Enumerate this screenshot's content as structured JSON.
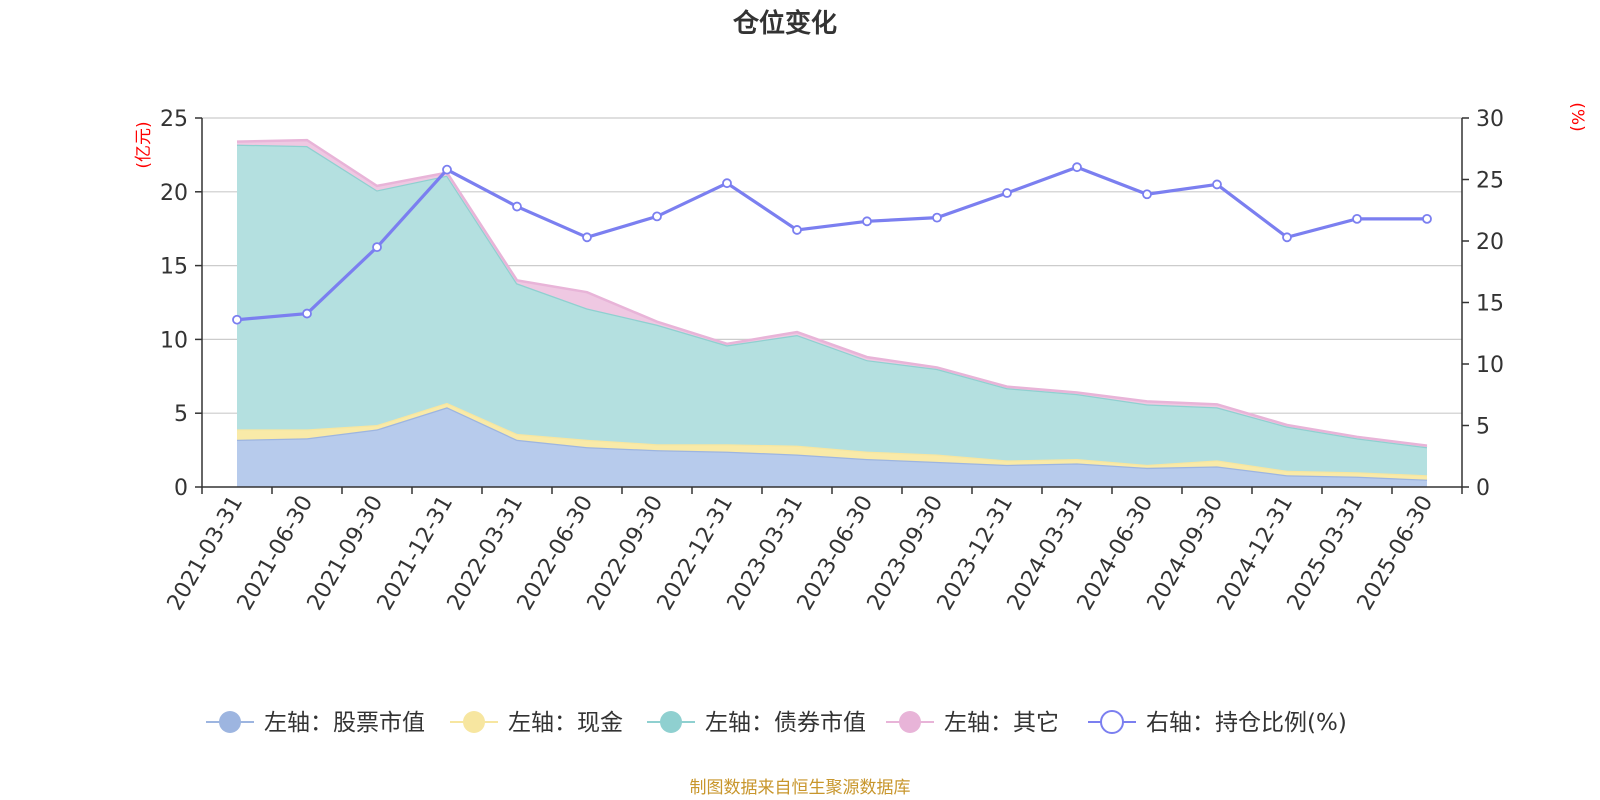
{
  "chart_data": {
    "type": "area",
    "title": "仓位变化",
    "left_axis_unit": "(亿元)",
    "right_axis_unit": "(%)",
    "categories": [
      "2021-03-31",
      "2021-06-30",
      "2021-09-30",
      "2021-12-31",
      "2022-03-31",
      "2022-06-30",
      "2022-09-30",
      "2022-12-31",
      "2023-03-31",
      "2023-06-30",
      "2023-09-30",
      "2023-12-31",
      "2024-03-31",
      "2024-06-30",
      "2024-09-30",
      "2024-12-31",
      "2025-03-31",
      "2025-06-30"
    ],
    "left_axis": {
      "min": 0,
      "max": 25,
      "ticks": [
        0,
        5,
        10,
        15,
        20,
        25
      ]
    },
    "right_axis": {
      "min": 0,
      "max": 30,
      "ticks": [
        0,
        5,
        10,
        15,
        20,
        25,
        30
      ]
    },
    "grid": true,
    "legend_position": "bottom",
    "series": [
      {
        "name": "左轴：股票市值",
        "axis": "left",
        "stacked": true,
        "color": "#9db5e0",
        "fill": "#b7cbec",
        "values": [
          3.2,
          3.3,
          3.9,
          5.4,
          3.2,
          2.7,
          2.5,
          2.4,
          2.2,
          1.9,
          1.7,
          1.5,
          1.6,
          1.3,
          1.4,
          0.8,
          0.7,
          0.5
        ]
      },
      {
        "name": "左轴：现金",
        "axis": "left",
        "stacked": true,
        "color": "#f7e6a0",
        "fill": "#f9eaa8",
        "values": [
          0.7,
          0.6,
          0.3,
          0.3,
          0.4,
          0.5,
          0.4,
          0.5,
          0.6,
          0.5,
          0.5,
          0.3,
          0.3,
          0.2,
          0.4,
          0.3,
          0.3,
          0.3
        ]
      },
      {
        "name": "左轴：债券市值",
        "axis": "left",
        "stacked": true,
        "color": "#8fd0d0",
        "fill": "#b4e0e0",
        "values": [
          19.3,
          19.2,
          15.9,
          15.4,
          10.2,
          8.9,
          8.1,
          6.7,
          7.5,
          6.2,
          5.8,
          4.9,
          4.4,
          4.1,
          3.6,
          3.0,
          2.3,
          1.9
        ]
      },
      {
        "name": "左轴：其它",
        "axis": "left",
        "stacked": true,
        "color": "#e8b4d8",
        "fill": "#efc8e2",
        "values": [
          0.2,
          0.4,
          0.3,
          0.2,
          0.2,
          1.1,
          0.2,
          0.1,
          0.2,
          0.2,
          0.1,
          0.1,
          0.1,
          0.2,
          0.2,
          0.1,
          0.1,
          0.1
        ]
      },
      {
        "name": "右轴：持仓比例(%)",
        "axis": "right",
        "type": "line",
        "color": "#7b7ff0",
        "values": [
          13.6,
          14.1,
          19.5,
          25.8,
          22.8,
          20.3,
          22.0,
          24.7,
          20.9,
          21.6,
          21.9,
          23.9,
          26.0,
          23.8,
          24.6,
          20.3,
          21.8,
          21.8
        ]
      }
    ],
    "source": "制图数据来自恒生聚源数据库"
  }
}
